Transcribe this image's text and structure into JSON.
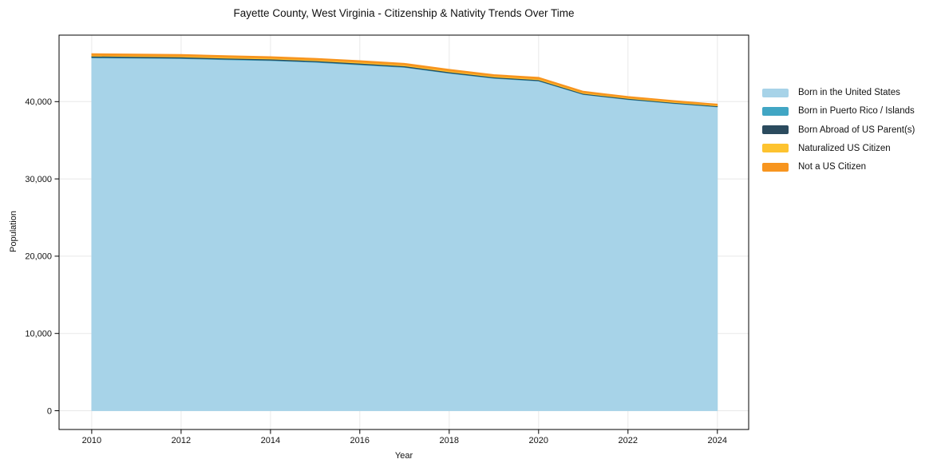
{
  "chart_data": {
    "type": "area",
    "stacked": true,
    "title": "Fayette County, West Virginia - Citizenship & Nativity Trends Over Time",
    "xlabel": "Year",
    "ylabel": "Population",
    "x": [
      2010,
      2011,
      2012,
      2013,
      2014,
      2015,
      2016,
      2017,
      2018,
      2019,
      2020,
      2021,
      2022,
      2023,
      2024
    ],
    "xlim": [
      2009.27,
      2024.7
    ],
    "ylim": [
      -2430,
      48600
    ],
    "x_ticks": [
      {
        "v": 2010,
        "label": "2010"
      },
      {
        "v": 2012,
        "label": "2012"
      },
      {
        "v": 2014,
        "label": "2014"
      },
      {
        "v": 2016,
        "label": "2016"
      },
      {
        "v": 2018,
        "label": "2018"
      },
      {
        "v": 2020,
        "label": "2020"
      },
      {
        "v": 2022,
        "label": "2022"
      },
      {
        "v": 2024,
        "label": "2024"
      }
    ],
    "y_ticks": [
      {
        "v": 0,
        "label": "0"
      },
      {
        "v": 10000,
        "label": "10,000"
      },
      {
        "v": 20000,
        "label": "20,000"
      },
      {
        "v": 30000,
        "label": "30,000"
      },
      {
        "v": 40000,
        "label": "40,000"
      }
    ],
    "grid": true,
    "grid_color": "#e8e8e8",
    "axis_color": "#000000",
    "text_color": "#111111",
    "background": "#ffffff",
    "legend_position": "right-outside",
    "series": [
      {
        "name": "Born in the United States",
        "color": "#A7D3E8",
        "values": [
          45650,
          45600,
          45550,
          45420,
          45290,
          45080,
          44750,
          44420,
          43650,
          43000,
          42650,
          40900,
          40250,
          39750,
          39300
        ]
      },
      {
        "name": "Born in Puerto Rico / Islands",
        "color": "#41A6C4",
        "values": [
          80,
          80,
          75,
          70,
          70,
          65,
          70,
          60,
          65,
          60,
          55,
          50,
          50,
          45,
          45
        ]
      },
      {
        "name": "Born Abroad of US Parent(s)",
        "color": "#2B4B5E",
        "values": [
          150,
          150,
          145,
          140,
          140,
          135,
          140,
          130,
          125,
          120,
          115,
          100,
          95,
          90,
          90
        ]
      },
      {
        "name": "Naturalized US Citizen",
        "color": "#FDC330",
        "values": [
          100,
          105,
          110,
          110,
          115,
          120,
          130,
          130,
          125,
          120,
          115,
          100,
          95,
          95,
          90
        ]
      },
      {
        "name": "Not a US Citizen",
        "color": "#F7951F",
        "values": [
          220,
          215,
          220,
          210,
          205,
          200,
          210,
          210,
          215,
          200,
          215,
          200,
          180,
          165,
          165
        ]
      }
    ]
  }
}
